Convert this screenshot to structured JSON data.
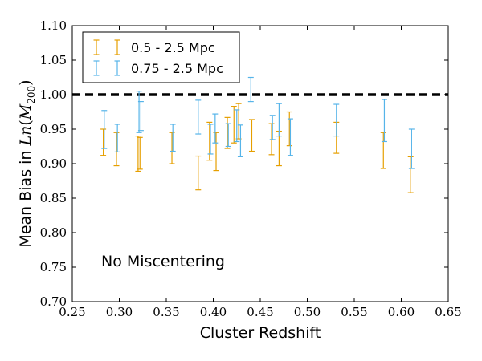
{
  "chart_data": {
    "type": "errorbar",
    "title": "",
    "xlabel": "Cluster Redshift",
    "ylabel_prefix": "Mean Bias in ",
    "ylabel_math_func": "Ln",
    "ylabel_math_var": "M",
    "ylabel_math_sub": "200",
    "xlim": [
      0.25,
      0.65
    ],
    "ylim": [
      0.7,
      1.1
    ],
    "xticks": [
      "0.25",
      "0.30",
      "0.35",
      "0.40",
      "0.45",
      "0.50",
      "0.55",
      "0.60",
      "0.65"
    ],
    "yticks": [
      "0.70",
      "0.75",
      "0.80",
      "0.85",
      "0.90",
      "0.95",
      "1.00",
      "1.05",
      "1.10"
    ],
    "grid": false,
    "legend_position": "top-left",
    "reference_line": {
      "y": 1.0,
      "style": "dashed",
      "color": "#000000"
    },
    "annotation": "No Miscentering",
    "series": [
      {
        "name": "0.5 - 2.5 Mpc",
        "color": "#E69F00",
        "points": [
          {
            "x": 0.283,
            "low": 0.912,
            "high": 0.95
          },
          {
            "x": 0.297,
            "low": 0.897,
            "high": 0.945
          },
          {
            "x": 0.32,
            "low": 0.889,
            "high": 0.94
          },
          {
            "x": 0.322,
            "low": 0.892,
            "high": 0.938
          },
          {
            "x": 0.356,
            "low": 0.9,
            "high": 0.945
          },
          {
            "x": 0.384,
            "low": 0.862,
            "high": 0.911
          },
          {
            "x": 0.396,
            "low": 0.905,
            "high": 0.96
          },
          {
            "x": 0.403,
            "low": 0.89,
            "high": 0.945
          },
          {
            "x": 0.415,
            "low": 0.922,
            "high": 0.967
          },
          {
            "x": 0.422,
            "low": 0.93,
            "high": 0.983
          },
          {
            "x": 0.427,
            "low": 0.936,
            "high": 0.987
          },
          {
            "x": 0.441,
            "low": 0.918,
            "high": 0.964
          },
          {
            "x": 0.462,
            "low": 0.913,
            "high": 0.958
          },
          {
            "x": 0.47,
            "low": 0.897,
            "high": 0.947
          },
          {
            "x": 0.481,
            "low": 0.926,
            "high": 0.975
          },
          {
            "x": 0.531,
            "low": 0.915,
            "high": 0.96
          },
          {
            "x": 0.581,
            "low": 0.893,
            "high": 0.945
          },
          {
            "x": 0.61,
            "low": 0.858,
            "high": 0.91
          }
        ]
      },
      {
        "name": "0.75 - 2.5 Mpc",
        "color": "#56B4E9",
        "points": [
          {
            "x": 0.284,
            "low": 0.922,
            "high": 0.977
          },
          {
            "x": 0.298,
            "low": 0.917,
            "high": 0.957
          },
          {
            "x": 0.321,
            "low": 0.945,
            "high": 1.005
          },
          {
            "x": 0.323,
            "low": 0.948,
            "high": 0.99
          },
          {
            "x": 0.357,
            "low": 0.918,
            "high": 0.957
          },
          {
            "x": 0.384,
            "low": 0.943,
            "high": 0.992
          },
          {
            "x": 0.397,
            "low": 0.914,
            "high": 0.957
          },
          {
            "x": 0.402,
            "low": 0.93,
            "high": 0.972
          },
          {
            "x": 0.416,
            "low": 0.925,
            "high": 0.958
          },
          {
            "x": 0.425,
            "low": 0.932,
            "high": 0.978
          },
          {
            "x": 0.429,
            "low": 0.91,
            "high": 0.956
          },
          {
            "x": 0.44,
            "low": 0.99,
            "high": 1.025
          },
          {
            "x": 0.463,
            "low": 0.935,
            "high": 0.97
          },
          {
            "x": 0.47,
            "low": 0.94,
            "high": 0.987
          },
          {
            "x": 0.482,
            "low": 0.912,
            "high": 0.965
          },
          {
            "x": 0.531,
            "low": 0.94,
            "high": 0.986
          },
          {
            "x": 0.582,
            "low": 0.932,
            "high": 0.993
          },
          {
            "x": 0.611,
            "low": 0.893,
            "high": 0.95
          }
        ]
      }
    ]
  }
}
